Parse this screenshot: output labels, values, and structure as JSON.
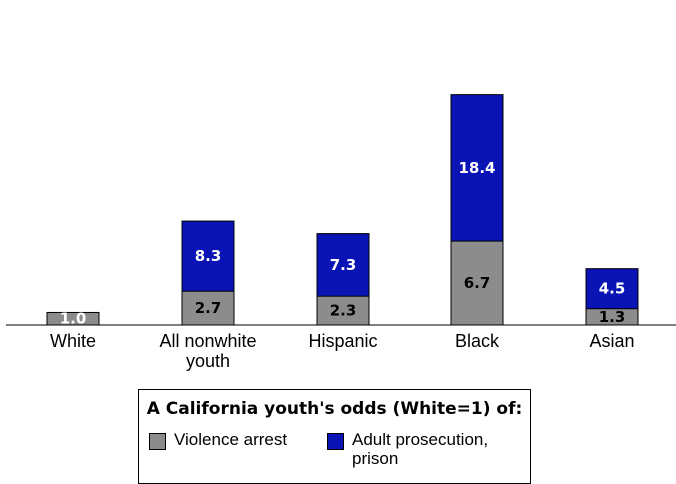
{
  "chart_data": {
    "type": "bar",
    "stacked": true,
    "categories": [
      "White",
      "All nonwhite youth",
      "Hispanic",
      "Black",
      "Asian"
    ],
    "category_lines": [
      [
        "White"
      ],
      [
        "All nonwhite",
        "youth"
      ],
      [
        "Hispanic"
      ],
      [
        "Black"
      ],
      [
        "Asian"
      ]
    ],
    "series": [
      {
        "name": "Violence arrest",
        "values": [
          1.0,
          2.7,
          2.3,
          6.7,
          1.3
        ],
        "color": "#8c8c8c",
        "label_color": "#000000"
      },
      {
        "name": "Adult prosecution, prison",
        "values": [
          1.0,
          8.3,
          7.3,
          18.4,
          4.5
        ],
        "color": "#0a14b4",
        "label_color": "#ffffff"
      }
    ],
    "data_labels": [
      [
        "",
        "2.7",
        "2.3",
        "6.7",
        "1.3"
      ],
      [
        "1.0",
        "8.3",
        "7.3",
        "18.4",
        "4.5"
      ]
    ],
    "title": "",
    "xlabel": "",
    "ylabel": "",
    "ylim": [
      0,
      25
    ],
    "grid": false,
    "legend_position": "bottom-center"
  },
  "legend": {
    "title": "A California youth's odds (White=1) of:",
    "items": [
      {
        "label_lines": [
          "Violence arrest"
        ],
        "color": "#8c8c8c"
      },
      {
        "label_lines": [
          "Adult prosecution,",
          "prison"
        ],
        "color": "#0a14b4"
      }
    ]
  }
}
